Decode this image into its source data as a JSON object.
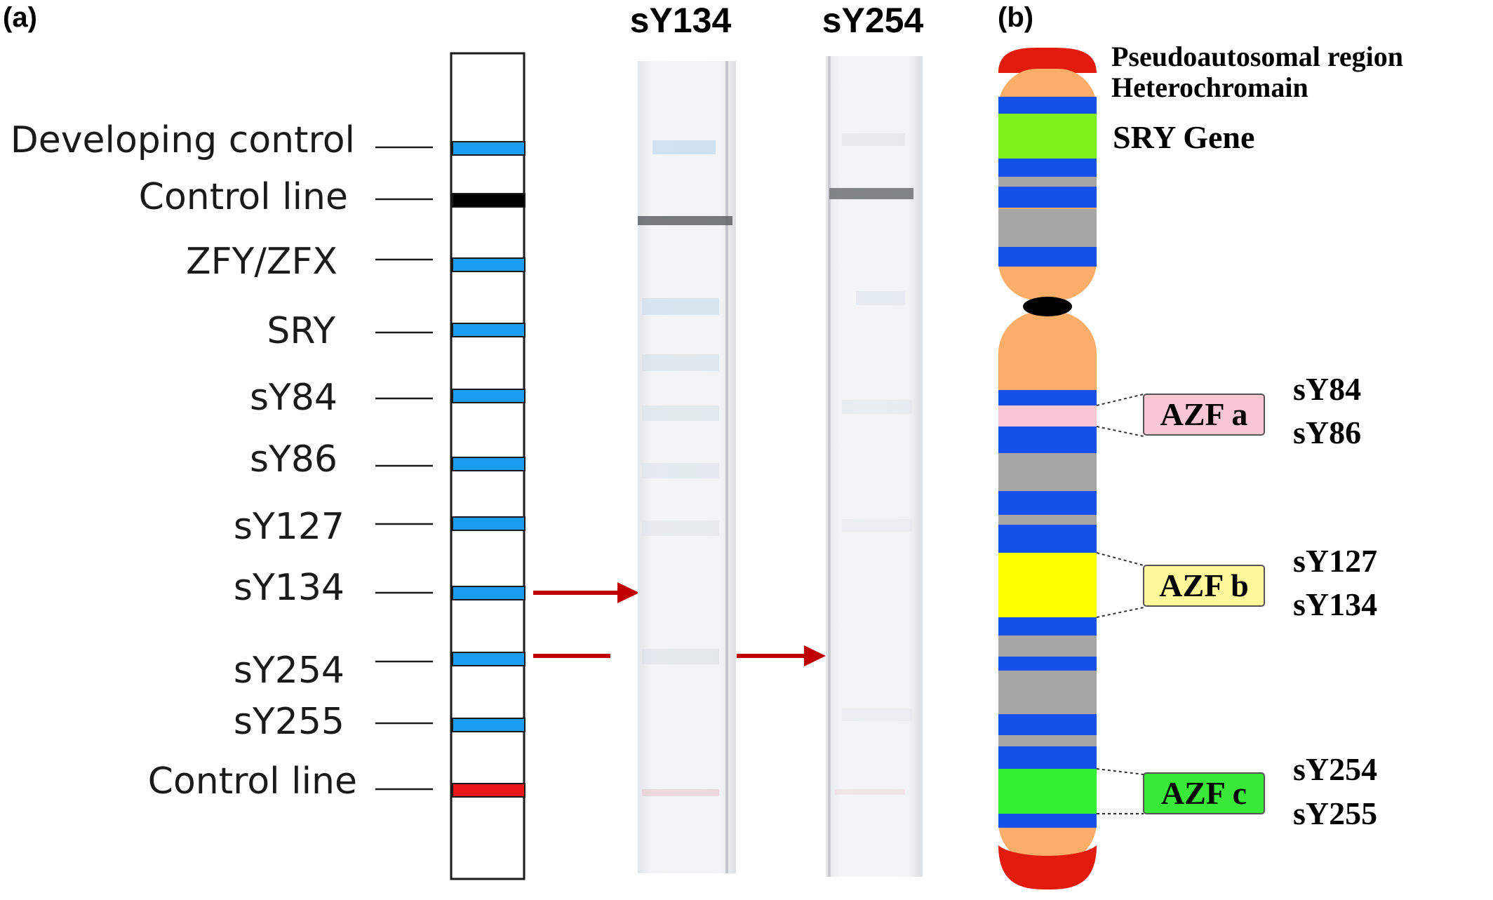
{
  "panel_a": {
    "label": "(a)",
    "strip_labels": [
      "Developing control",
      "Control line",
      "ZFY/ZFX",
      "SRY",
      "sY84",
      "sY86",
      "sY127",
      "sY134",
      "sY254",
      "sY255",
      "Control line"
    ],
    "band_colors": [
      "#1a9cf0",
      "#000000",
      "#1a9cf0",
      "#1a9cf0",
      "#1a9cf0",
      "#1a9cf0",
      "#1a9cf0",
      "#1a9cf0",
      "#1a9cf0",
      "#1a9cf0",
      "#e8151b"
    ],
    "arrow_color": "#c00000"
  },
  "test_strips": [
    {
      "label": "sY134"
    },
    {
      "label": "sY254"
    }
  ],
  "panel_b": {
    "label": "(b)",
    "top_label_1": "Pseudoautosomal region",
    "top_label_2": "Heterochromain",
    "sry_label": "SRY Gene",
    "regions": [
      {
        "name": "AZF a",
        "markers": [
          "sY84",
          "sY86"
        ],
        "color": "#f9c6d4"
      },
      {
        "name": "AZF b",
        "markers": [
          "sY127",
          "sY134"
        ],
        "color": "#fff79a"
      },
      {
        "name": "AZF c",
        "markers": [
          "sY254",
          "sY255"
        ],
        "color": "#3ae83a"
      }
    ],
    "chromosome_colors": {
      "telomere": "#e31b0c",
      "arm": "#fbae6a",
      "blue_band": "#1451e6",
      "gray_band": "#a6a6a6",
      "sry": "#7ff21d",
      "azf_b_band": "#ffff00",
      "azf_c_band": "#33f033",
      "centromere": "#000000"
    }
  }
}
